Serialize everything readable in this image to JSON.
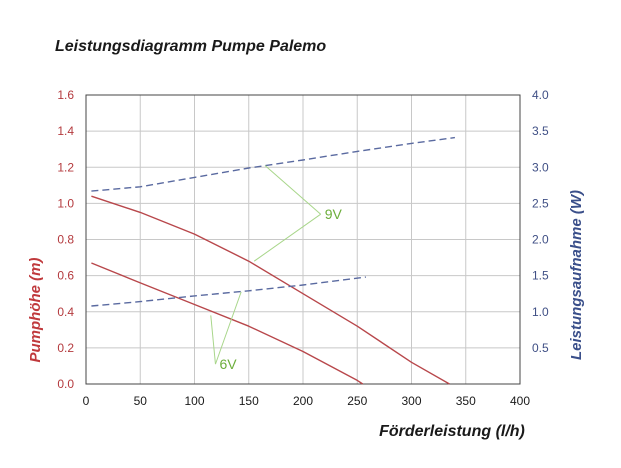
{
  "chart_data": {
    "type": "line",
    "title": "Leistungsdiagramm Pumpe Palemo",
    "xlabel": "Förderleistung (l/h)",
    "ylabel_left": "Pumphöhe (m)",
    "ylabel_right": "Leistungsaufnahme (W)",
    "xlim": [
      0,
      400
    ],
    "ylim_left": [
      0,
      1.6
    ],
    "ylim_right": [
      0,
      4.0
    ],
    "x_ticks": [
      "0",
      "50",
      "100",
      "150",
      "200",
      "250",
      "300",
      "350",
      "400"
    ],
    "y_left_ticks": [
      "0.0",
      "0.2",
      "0.4",
      "0.6",
      "0.8",
      "1.0",
      "1.2",
      "1.4",
      "1.6"
    ],
    "y_right_ticks": [
      "0.5",
      "1.0",
      "1.5",
      "2.0",
      "2.5",
      "3.0",
      "3.5",
      "4.0"
    ],
    "grid": true,
    "series": [
      {
        "axis": "left",
        "style": "solid",
        "color": "#b8474b",
        "x": [
          5,
          50,
          100,
          150,
          200,
          250,
          300,
          335
        ],
        "y": [
          1.04,
          0.95,
          0.83,
          0.68,
          0.5,
          0.32,
          0.12,
          0.0
        ]
      },
      {
        "axis": "left",
        "style": "solid",
        "color": "#b8474b",
        "x": [
          5,
          50,
          100,
          150,
          200,
          250,
          255
        ],
        "y": [
          0.67,
          0.56,
          0.44,
          0.32,
          0.18,
          0.02,
          0.0
        ]
      },
      {
        "axis": "right",
        "style": "dashed",
        "color": "#5a6aa0",
        "x": [
          5,
          50,
          100,
          150,
          200,
          250,
          300,
          340
        ],
        "y": [
          2.67,
          2.73,
          2.86,
          2.99,
          3.1,
          3.22,
          3.33,
          3.41
        ]
      },
      {
        "axis": "right",
        "style": "dashed",
        "color": "#5a6aa0",
        "x": [
          5,
          50,
          100,
          150,
          200,
          258
        ],
        "y": [
          1.08,
          1.14,
          1.22,
          1.29,
          1.37,
          1.48
        ]
      }
    ],
    "annotations": [
      {
        "text": "9V",
        "x": 220,
        "y_left": 0.94,
        "pointers": [
          {
            "x": 165,
            "y_left": 1.21
          },
          {
            "x": 155,
            "y_left": 0.68
          }
        ]
      },
      {
        "text": "6V",
        "x": 123,
        "y_left": 0.11,
        "pointers": [
          {
            "x": 115,
            "y_left": 0.38
          },
          {
            "x": 143,
            "y_left": 0.51
          }
        ]
      }
    ]
  }
}
